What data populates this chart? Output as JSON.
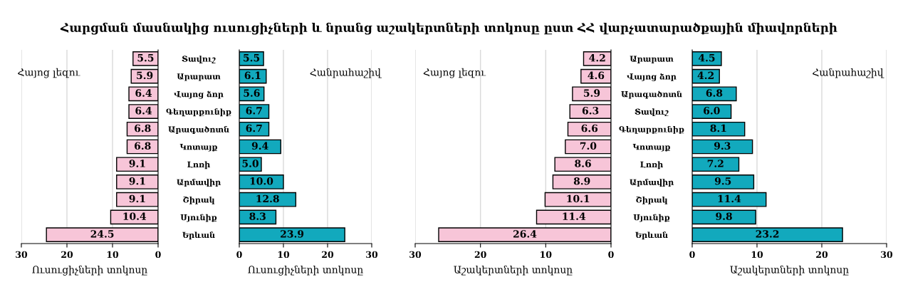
{
  "chart_data": [
    {
      "type": "bar",
      "orientation": "horizontal",
      "title": "Հարցման մասնակից ուսուցիչների և նրանց աշակերտների տոկոսը ըստ ՀՀ վարչատարածքային միավորների",
      "annotations": [
        "Հայոց լեզու"
      ],
      "xlabel": "Ուսուցիչների տոկոսը",
      "categories": [
        "Տավուշ",
        "Արարատ",
        "Վայոց ձոր",
        "Գեղարքունիք",
        "Արագածոտն",
        "Կոտայք",
        "Լոռի",
        "Արմավիր",
        "Շիրակ",
        "Սյունիք",
        "Երևան"
      ],
      "series": [
        {
          "color": "#f7c5d8",
          "values": [
            5.5,
            5.9,
            6.4,
            6.4,
            6.8,
            6.8,
            9.1,
            9.1,
            9.1,
            10.4,
            24.5
          ]
        }
      ],
      "xlim": [
        30,
        0
      ],
      "xticks": [
        30,
        20,
        10,
        0
      ],
      "grid": "x",
      "data_labels": true
    },
    {
      "type": "bar",
      "orientation": "horizontal",
      "annotations": [
        "Հանրահաշիվ"
      ],
      "xlabel": "Ուսուցիչների տոկոսը",
      "categories": [
        null,
        null,
        null,
        null,
        null,
        null,
        null,
        null,
        null,
        null,
        null
      ],
      "series": [
        {
          "color": "#12a9bd",
          "values": [
            5.5,
            6.1,
            5.6,
            6.7,
            6.7,
            9.4,
            5.0,
            10.0,
            12.8,
            8.3,
            23.9
          ],
          "value_labels": [
            "5.5",
            "6.1",
            "5.6",
            "6.7",
            "6.7",
            "9.4",
            "5.0",
            "10.0",
            "12.8",
            "8.3",
            "23.9"
          ]
        }
      ],
      "xlim": [
        0,
        30
      ],
      "xticks": [
        0,
        10,
        20,
        30
      ],
      "grid": "x"
    },
    {
      "type": "bar",
      "orientation": "horizontal",
      "annotations": [
        "Հայոց լեզու"
      ],
      "xlabel": "Աշակերտների տոկոսը",
      "categories": [
        "Արարատ",
        "Վայոց ձոր",
        "Արագածոտն",
        "Տավուշ",
        "Գեղարքունիք",
        "Կոտայք",
        "Լոռի",
        "Արմավիր",
        "Շիրակ",
        "Սյունիք",
        "Երևան"
      ],
      "series": [
        {
          "color": "#f7c5d8",
          "values": [
            4.2,
            4.6,
            5.9,
            6.3,
            6.6,
            7.0,
            8.6,
            8.9,
            10.1,
            11.4,
            26.4
          ],
          "value_labels": [
            "4.2",
            "4.6",
            "5.9",
            "6.3",
            "6.6",
            "7.0",
            "8.6",
            "8.9",
            "10.1",
            "11.4",
            "26.4"
          ]
        }
      ],
      "xlim": [
        30,
        0
      ],
      "xticks": [
        30,
        20,
        10,
        0
      ],
      "grid": "x"
    },
    {
      "type": "bar",
      "orientation": "horizontal",
      "annotations": [
        "Հանրահաշիվ"
      ],
      "xlabel": "Աշակերտների տոկոսը",
      "categories": [
        null,
        null,
        null,
        null,
        null,
        null,
        null,
        null,
        null,
        null,
        null
      ],
      "series": [
        {
          "color": "#12a9bd",
          "values": [
            4.5,
            4.2,
            6.8,
            6.0,
            8.1,
            9.3,
            7.2,
            9.5,
            11.4,
            9.8,
            23.2
          ],
          "value_labels": [
            "4.5",
            "4.2",
            "6.8",
            "6.0",
            "8.1",
            "9.3",
            "7.2",
            "9.5",
            "11.4",
            "9.8",
            "23.2"
          ]
        }
      ],
      "xlim": [
        0,
        30
      ],
      "xticks": [
        0,
        10,
        20,
        30
      ],
      "grid": "x"
    }
  ]
}
